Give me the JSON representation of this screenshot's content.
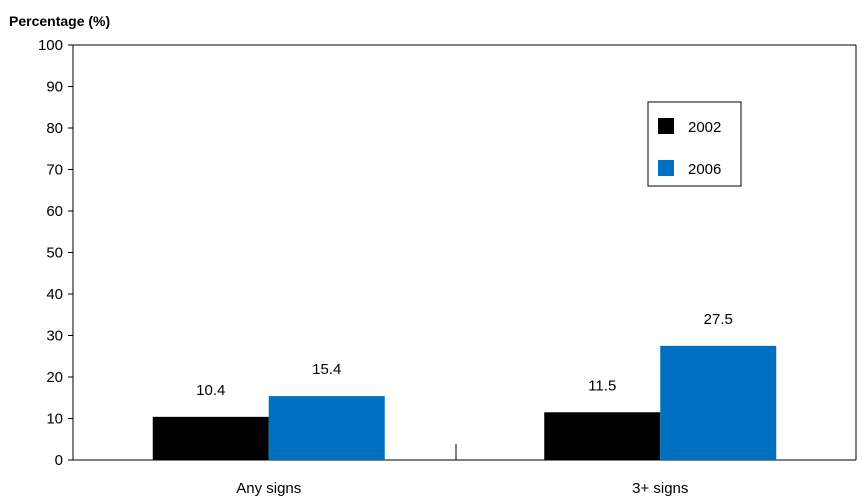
{
  "chart_data": {
    "type": "bar",
    "ylabel": "Percentage (%)",
    "xlabel": "",
    "categories": [
      "Any signs",
      "3+ signs"
    ],
    "series": [
      {
        "name": "2002",
        "color": "#000000",
        "values": [
          10.4,
          11.5
        ],
        "labels": [
          "10.4",
          "11.5"
        ]
      },
      {
        "name": "2006",
        "color": "#0070c0",
        "values": [
          15.4,
          27.5
        ],
        "labels": [
          "15.4",
          "27.5"
        ]
      }
    ],
    "ylim": [
      0,
      100
    ],
    "yticks": [
      "0",
      "10",
      "20",
      "30",
      "40",
      "50",
      "60",
      "70",
      "80",
      "90",
      "100"
    ],
    "grid": false,
    "legend_position": "top-right"
  }
}
